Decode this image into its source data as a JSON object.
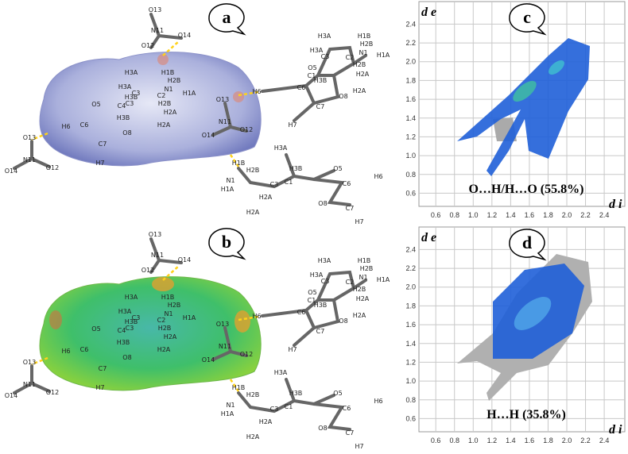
{
  "panels": [
    {
      "label": "a",
      "atom_labels": [
        "O13",
        "N11",
        "O14",
        "O12",
        "H3A",
        "H1B",
        "H2B",
        "N1",
        "H3A",
        "C3",
        "H3B",
        "C2",
        "H1A",
        "O5",
        "C4",
        "C3",
        "H2B",
        "H2A",
        "H3B",
        "H2A",
        "C6",
        "H6",
        "O8",
        "C7",
        "H7",
        "O13",
        "N11",
        "O12",
        "O14",
        "H3A",
        "H1B",
        "H2B",
        "N1",
        "H1A",
        "H3A",
        "C3",
        "C2",
        "H2B",
        "O5",
        "H3B",
        "H2A",
        "C1",
        "H2A",
        "C6",
        "H6",
        "O13",
        "O8",
        "C7",
        "N11",
        "O12",
        "H7",
        "O14",
        "H3A",
        "H1B",
        "H2B",
        "H3B",
        "O5",
        "H6",
        "N1",
        "C3",
        "C1",
        "H1A",
        "H2A",
        "C6",
        "O8",
        "C7",
        "H2A",
        "H7"
      ]
    },
    {
      "label": "b",
      "atom_labels": [
        "O13",
        "N11",
        "O14",
        "O12",
        "H3A",
        "H1B",
        "H2B",
        "N1",
        "H3A",
        "C3",
        "H3B",
        "C2",
        "H1A",
        "O5",
        "C4",
        "C3",
        "H2B",
        "H2A",
        "H3B",
        "H2A",
        "C6",
        "H6",
        "O8",
        "C7",
        "H7",
        "O13",
        "N11",
        "O12",
        "O14",
        "H3A",
        "H1B",
        "H2B",
        "N1",
        "H1A",
        "H3A",
        "C3",
        "C2",
        "H2B",
        "O5",
        "H3B",
        "H2A",
        "C1",
        "H2A",
        "C6",
        "H6",
        "O13",
        "O8",
        "C7",
        "N11",
        "O12",
        "H7",
        "O14",
        "H3A",
        "H1B",
        "H2B",
        "H3B",
        "O5",
        "H6",
        "N1",
        "C3",
        "C1",
        "H1A",
        "H2A",
        "C6",
        "O8",
        "C7",
        "H2A",
        "H7"
      ]
    },
    {
      "label": "c",
      "caption": "O…H/H…O (55.8%)",
      "y_axis_label": "d e",
      "x_axis_label": "d i",
      "xlim": [
        0.42,
        2.62
      ],
      "ylim": [
        0.46,
        2.64
      ],
      "xticks": [
        0.6,
        0.8,
        {
          "value": 1,
          "label": "1.0"
        },
        1.2,
        1.4,
        1.6,
        1.8,
        {
          "value": 2,
          "label": "2.0"
        },
        2.2,
        2.4
      ],
      "yticks": [
        0.6,
        0.8,
        {
          "value": 1,
          "label": "1.0"
        },
        1.2,
        1.4,
        1.6,
        1.8,
        {
          "value": 2,
          "label": "2.0"
        },
        2.2,
        2.4
      ]
    },
    {
      "label": "d",
      "caption": "H…H (35.8%)",
      "y_axis_label": "d e",
      "x_axis_label": "d i",
      "xlim": [
        0.42,
        2.62
      ],
      "ylim": [
        0.46,
        2.64
      ],
      "xticks": [
        0.6,
        0.8,
        {
          "value": 1,
          "label": "1.0"
        },
        1.2,
        1.4,
        1.6,
        1.8,
        {
          "value": 2,
          "label": "2.0"
        },
        2.2,
        2.4
      ],
      "yticks": [
        0.6,
        0.8,
        {
          "value": 1,
          "label": "1.0"
        },
        1.2,
        1.4,
        1.6,
        1.8,
        {
          "value": 2,
          "label": "2.0"
        },
        2.2,
        2.4
      ]
    }
  ]
}
